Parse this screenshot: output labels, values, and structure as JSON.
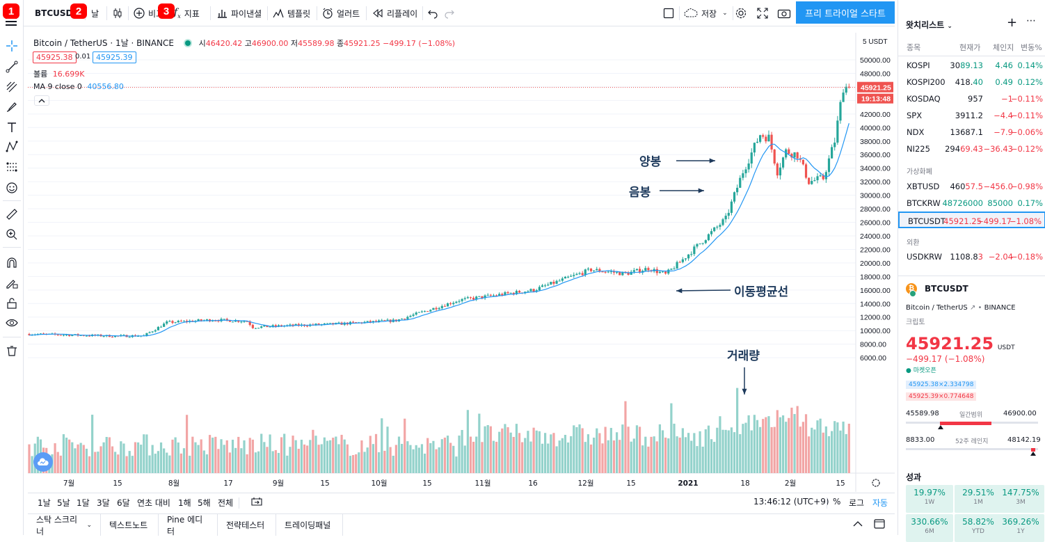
{
  "toolbar": {
    "symbol": "BTCUSDT",
    "interval": "날",
    "compare": "비교",
    "indicators": "지표",
    "financials": "파이낸셜",
    "templates": "템플릿",
    "alert": "얼러트",
    "replay": "리플레이",
    "save": "저장",
    "trial_button": "프리 트라이얼 스타트",
    "badges": [
      "1",
      "2",
      "3"
    ]
  },
  "legend": {
    "title": "Bitcoin / TetherUS · 1날 · BINANCE",
    "o_label": "시",
    "o": "46420.42",
    "h_label": "고",
    "h": "46900.00",
    "l_label": "저",
    "l": "45589.98",
    "c_label": "종",
    "c": "45921.25",
    "change": "−499.17 (−1.08%)",
    "bid": "45925.38",
    "spread": "0.01",
    "ask": "45925.39",
    "volume_label": "볼륨",
    "volume": "16.699K",
    "ma_label": "MA 9 close 0",
    "ma": "40556.80"
  },
  "price_axis": {
    "currency": "USDT",
    "last_price": "45921.25",
    "countdown": "19:13:48",
    "ticks": [
      50000,
      48000,
      46000,
      44000,
      42000,
      40000,
      38000,
      36000,
      34000,
      32000,
      30000,
      28000,
      26000,
      24000,
      22000,
      20000,
      18000,
      16000,
      14000,
      12000,
      10000,
      8000,
      6000
    ]
  },
  "time_axis": [
    "7월",
    "15",
    "8월",
    "17",
    "9월",
    "15",
    "10월",
    "15",
    "11월",
    "16",
    "12월",
    "15",
    "2021",
    "18",
    "2월",
    "15"
  ],
  "annotations": {
    "bull": "양봉",
    "bear": "음봉",
    "ma": "이동평균선",
    "volume": "거래량"
  },
  "range_bar": {
    "ranges": [
      "1날",
      "5날",
      "1달",
      "3달",
      "6달",
      "연초 대비",
      "1해",
      "5해",
      "전체"
    ],
    "clock": "13:46:12 (UTC+9)",
    "percent": "%",
    "log": "로그",
    "auto": "자동"
  },
  "bottom_panels": [
    "스탁 스크리너",
    "텍스트노트",
    "Pine 에디터",
    "전략테스터",
    "트레이딩패널"
  ],
  "watchlist": {
    "title": "왓치리스트",
    "columns": [
      "종목",
      "현재가",
      "체인지",
      "변동%"
    ],
    "groups": {
      "g1": [
        {
          "symbol": "KOSPI",
          "price_a": "30",
          "price_b": "89.13",
          "change": "4.46",
          "pct": "0.14%",
          "dir": "up"
        },
        {
          "symbol": "KOSPI200",
          "price_a": "418.",
          "price_b": "40",
          "change": "0.49",
          "pct": "0.12%",
          "dir": "up"
        },
        {
          "symbol": "KOSDAQ",
          "price_a": "957",
          "price_b": "",
          "change": "−1",
          "pct": "−0.11%",
          "dir": "dn"
        },
        {
          "symbol": "SPX",
          "price_a": "3911.2",
          "price_b": "",
          "change": "−4.4",
          "pct": "−0.11%",
          "dir": "dn"
        },
        {
          "symbol": "NDX",
          "price_a": "13687.1",
          "price_b": "",
          "change": "−7.9",
          "pct": "−0.06%",
          "dir": "dn"
        },
        {
          "symbol": "NI225",
          "price_a": "294",
          "price_b": "69.43",
          "change": "−36.43",
          "pct": "−0.12%",
          "dir": "dn"
        }
      ],
      "crypto_label": "가상화폐",
      "g2": [
        {
          "symbol": "XBTUSD",
          "price_a": "460",
          "price_b": "57.5",
          "change": "−456.0",
          "pct": "−0.98%",
          "dir": "dn"
        },
        {
          "symbol": "BTCKRW",
          "price_a": "",
          "price_b": "48726000",
          "change": "85000",
          "pct": "0.17%",
          "dir": "up"
        },
        {
          "symbol": "BTCUSDT",
          "price_a": "",
          "price_b": "45921.25",
          "change": "−499.17",
          "pct": "−1.08%",
          "dir": "dn"
        }
      ],
      "fx_label": "외환",
      "g3": [
        {
          "symbol": "USDKRW",
          "price_a": "1108.8",
          "price_b": "3",
          "change": "−2.04",
          "pct": "−0.18%",
          "dir": "dn"
        }
      ]
    }
  },
  "detail": {
    "symbol": "BTCUSDT",
    "name": "Bitcoin / TetherUS",
    "exchange": "BINANCE",
    "type": "크립토",
    "price": "45921.25",
    "currency": "USDT",
    "change": "−499.17 (−1.08%)",
    "market_status": "마켓오픈",
    "bid_line": "45925.38×2.334798",
    "ask_line": "45925.39×0.774648",
    "day_low": "45589.98",
    "day_label": "일간범위",
    "day_high": "46900.00",
    "year_low": "8833.00",
    "year_label": "52주 레인지",
    "year_high": "48142.19",
    "perf_title": "성과",
    "perf": [
      {
        "v": "19.97%",
        "l": "1W"
      },
      {
        "v": "29.51%",
        "l": "1M"
      },
      {
        "v": "147.75%",
        "l": "3M"
      },
      {
        "v": "330.66%",
        "l": "6M"
      },
      {
        "v": "58.82%",
        "l": "YTD"
      },
      {
        "v": "369.26%",
        "l": "1Y"
      }
    ]
  },
  "colors": {
    "up": "#26a69a",
    "down": "#ef5350",
    "ma": "#2196f3",
    "accent": "#2196f3"
  }
}
